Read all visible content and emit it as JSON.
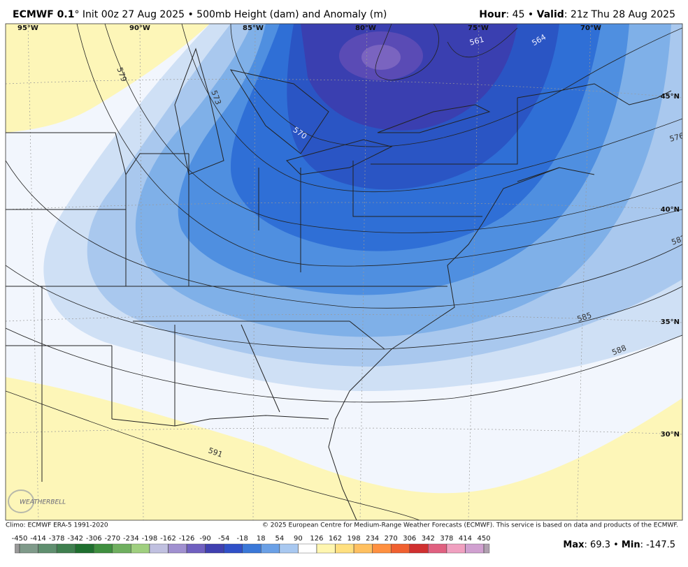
{
  "header": {
    "model": "ECMWF 0.1",
    "subtitle": "° Init 00z 27 Aug 2025 • 500mb Height (dam) and Anomaly (m)",
    "hour_label": "Hour",
    "hour_value": ": 45 • ",
    "valid_label": "Valid",
    "valid_value": ": 21z Thu 28 Aug 2025"
  },
  "map": {
    "longitudes": [
      "95°W",
      "90°W",
      "85°W",
      "80°W",
      "75°W",
      "70°W"
    ],
    "latitudes": [
      "45°N",
      "40°N",
      "35°N",
      "30°N"
    ],
    "contours": [
      "561",
      "564",
      "570",
      "573",
      "576",
      "579",
      "582",
      "585",
      "588",
      "591"
    ],
    "watermark": "WEATHERBELL"
  },
  "footer": {
    "climo": "Climo: ECMWF ERA-5 1991-2020",
    "credit": "© 2025 European Centre for Medium-Range Weather Forecasts (ECMWF). This service is based on data and products of the ECMWF."
  },
  "colorbar": {
    "ticks": [
      -450,
      -414,
      -378,
      -342,
      -306,
      -270,
      -234,
      -198,
      -162,
      -126,
      -90,
      -54,
      -18,
      18,
      54,
      90,
      126,
      162,
      198,
      234,
      270,
      306,
      342,
      378,
      414,
      450
    ],
    "colors": [
      "#9a9a9a",
      "#7f9a8a",
      "#5f8f6f",
      "#3f7f4f",
      "#1f6f2f",
      "#3f8f3f",
      "#6faf5f",
      "#9fcf7f",
      "#c0c0e0",
      "#a090d0",
      "#7060c0",
      "#4040b0",
      "#3050c8",
      "#3a78d8",
      "#6aa0e6",
      "#a8c8f0",
      "#ffffff",
      "#fff6b0",
      "#ffe080",
      "#ffc060",
      "#ff9040",
      "#f06030",
      "#d03030",
      "#e06080",
      "#f0a0c0",
      "#d0a0d0",
      "#b0a0b0"
    ]
  },
  "stats": [
    "Max",
    ": 69.3 • ",
    "Min",
    ": -147.5"
  ]
}
